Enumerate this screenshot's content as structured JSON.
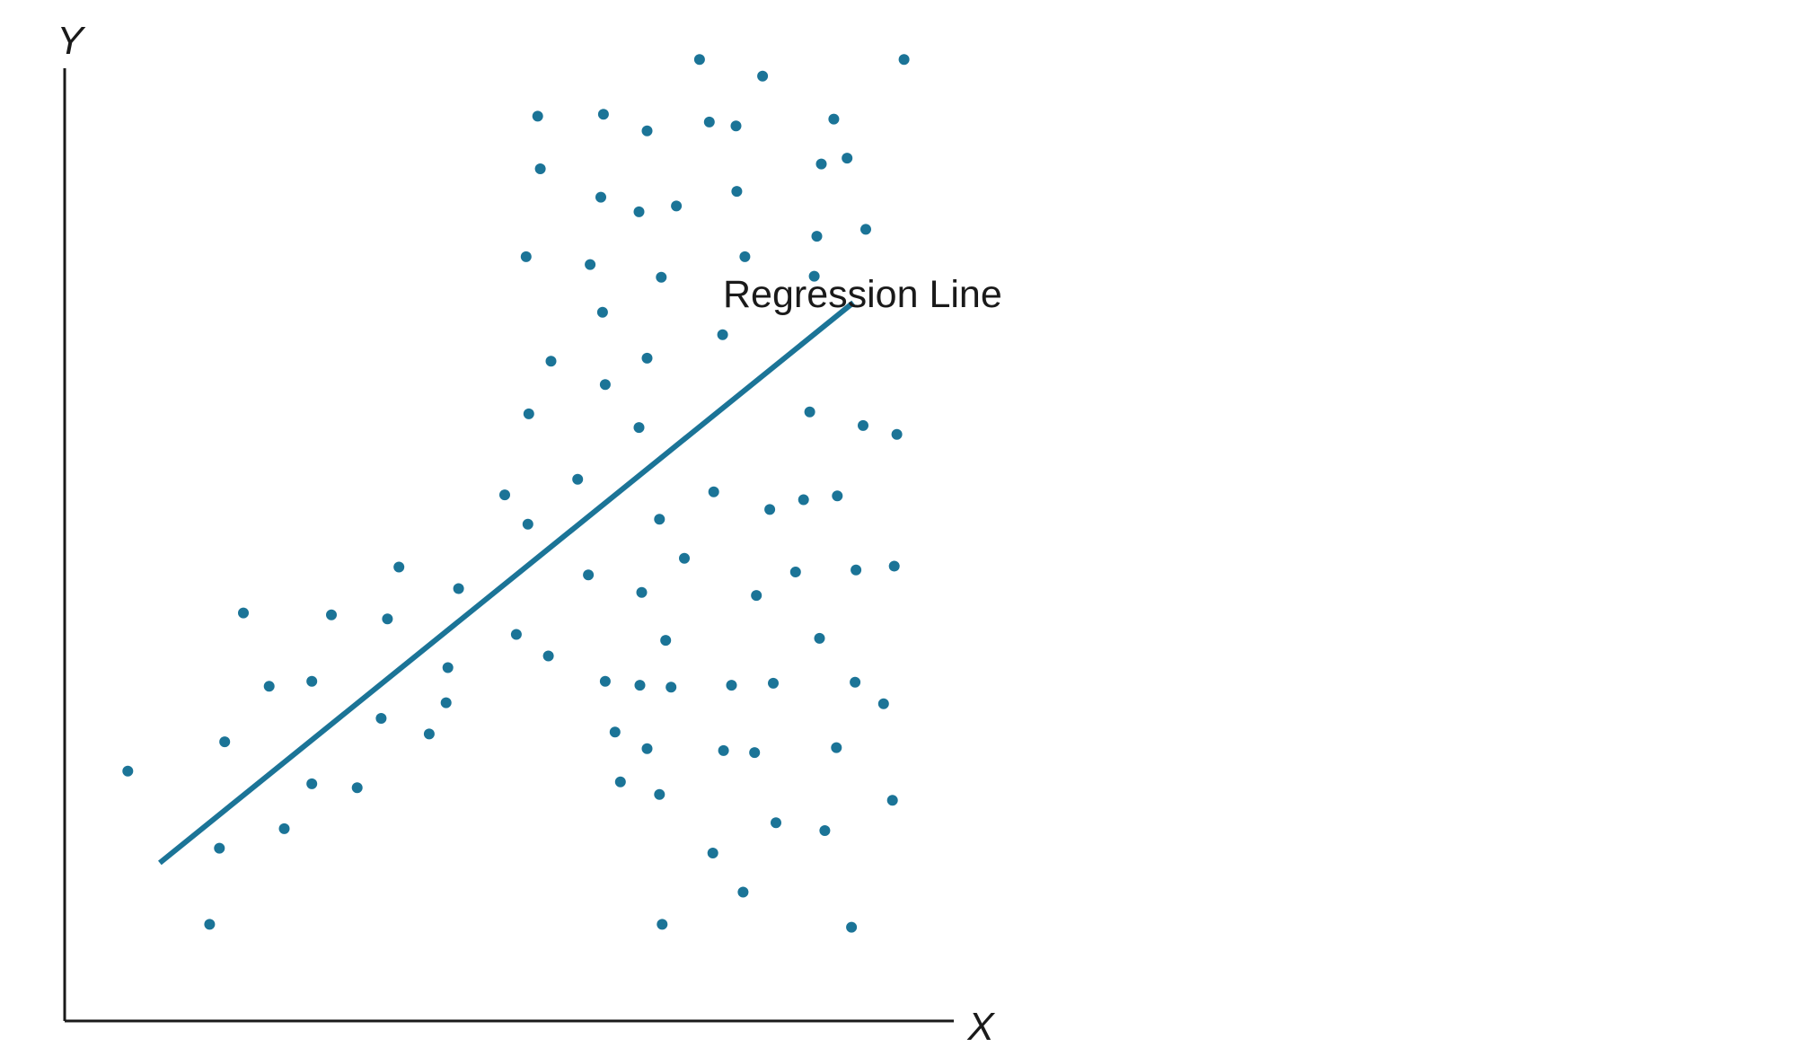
{
  "chart_data": {
    "type": "scatter",
    "xlabel": "X",
    "ylabel": "Y",
    "xlim": [
      0,
      100
    ],
    "ylim": [
      0,
      100
    ],
    "grid": false,
    "legend": "none",
    "point_color": "#1b7497",
    "line_color": "#1b7497",
    "annotation": "Regression Line",
    "regression_line": [
      {
        "x": 10.7,
        "y": 16.2
      },
      {
        "x": 88.7,
        "y": 73.6
      }
    ],
    "points": [
      {
        "x": 71.4,
        "y": 98.5
      },
      {
        "x": 78.5,
        "y": 96.8
      },
      {
        "x": 94.4,
        "y": 98.5
      },
      {
        "x": 53.2,
        "y": 92.7
      },
      {
        "x": 60.6,
        "y": 92.9
      },
      {
        "x": 65.5,
        "y": 91.2
      },
      {
        "x": 72.5,
        "y": 92.1
      },
      {
        "x": 75.5,
        "y": 91.7
      },
      {
        "x": 86.5,
        "y": 92.4
      },
      {
        "x": 53.5,
        "y": 87.3
      },
      {
        "x": 85.1,
        "y": 87.8
      },
      {
        "x": 88.0,
        "y": 88.4
      },
      {
        "x": 60.3,
        "y": 84.4
      },
      {
        "x": 64.6,
        "y": 82.9
      },
      {
        "x": 68.8,
        "y": 83.5
      },
      {
        "x": 75.6,
        "y": 85.0
      },
      {
        "x": 51.9,
        "y": 78.3
      },
      {
        "x": 59.1,
        "y": 77.5
      },
      {
        "x": 67.1,
        "y": 76.2
      },
      {
        "x": 76.5,
        "y": 78.3
      },
      {
        "x": 84.3,
        "y": 76.3
      },
      {
        "x": 84.6,
        "y": 80.4
      },
      {
        "x": 90.1,
        "y": 81.1
      },
      {
        "x": 60.5,
        "y": 72.6
      },
      {
        "x": 74.0,
        "y": 70.3
      },
      {
        "x": 54.7,
        "y": 67.6
      },
      {
        "x": 65.5,
        "y": 67.9
      },
      {
        "x": 60.8,
        "y": 65.2
      },
      {
        "x": 52.2,
        "y": 62.2
      },
      {
        "x": 64.6,
        "y": 60.8
      },
      {
        "x": 83.8,
        "y": 62.4
      },
      {
        "x": 89.8,
        "y": 61.0
      },
      {
        "x": 93.6,
        "y": 60.1
      },
      {
        "x": 49.5,
        "y": 53.9
      },
      {
        "x": 57.7,
        "y": 55.5
      },
      {
        "x": 52.1,
        "y": 50.9
      },
      {
        "x": 66.9,
        "y": 51.4
      },
      {
        "x": 73.0,
        "y": 54.2
      },
      {
        "x": 79.3,
        "y": 52.4
      },
      {
        "x": 83.1,
        "y": 53.4
      },
      {
        "x": 86.9,
        "y": 53.8
      },
      {
        "x": 69.7,
        "y": 47.4
      },
      {
        "x": 37.6,
        "y": 46.5
      },
      {
        "x": 58.9,
        "y": 45.7
      },
      {
        "x": 82.2,
        "y": 46.0
      },
      {
        "x": 89.0,
        "y": 46.2
      },
      {
        "x": 93.3,
        "y": 46.6
      },
      {
        "x": 44.3,
        "y": 44.3
      },
      {
        "x": 64.9,
        "y": 43.9
      },
      {
        "x": 77.8,
        "y": 43.6
      },
      {
        "x": 20.1,
        "y": 41.8
      },
      {
        "x": 30.0,
        "y": 41.6
      },
      {
        "x": 36.3,
        "y": 41.2
      },
      {
        "x": 50.8,
        "y": 39.6
      },
      {
        "x": 67.6,
        "y": 39.0
      },
      {
        "x": 84.9,
        "y": 39.2
      },
      {
        "x": 54.4,
        "y": 37.4
      },
      {
        "x": 43.1,
        "y": 36.2
      },
      {
        "x": 23.0,
        "y": 34.3
      },
      {
        "x": 27.8,
        "y": 34.8
      },
      {
        "x": 60.8,
        "y": 34.8
      },
      {
        "x": 64.7,
        "y": 34.4
      },
      {
        "x": 68.2,
        "y": 34.2
      },
      {
        "x": 75.0,
        "y": 34.4
      },
      {
        "x": 79.7,
        "y": 34.6
      },
      {
        "x": 88.9,
        "y": 34.7
      },
      {
        "x": 92.1,
        "y": 32.5
      },
      {
        "x": 42.9,
        "y": 32.6
      },
      {
        "x": 35.6,
        "y": 31.0
      },
      {
        "x": 41.0,
        "y": 29.4
      },
      {
        "x": 18.0,
        "y": 28.6
      },
      {
        "x": 61.9,
        "y": 29.6
      },
      {
        "x": 65.5,
        "y": 27.9
      },
      {
        "x": 74.1,
        "y": 27.7
      },
      {
        "x": 77.6,
        "y": 27.5
      },
      {
        "x": 86.8,
        "y": 28.0
      },
      {
        "x": 7.1,
        "y": 25.6
      },
      {
        "x": 27.8,
        "y": 24.3
      },
      {
        "x": 32.9,
        "y": 23.9
      },
      {
        "x": 62.5,
        "y": 24.5
      },
      {
        "x": 66.9,
        "y": 23.2
      },
      {
        "x": 93.1,
        "y": 22.6
      },
      {
        "x": 24.7,
        "y": 19.7
      },
      {
        "x": 80.0,
        "y": 20.3
      },
      {
        "x": 85.5,
        "y": 19.5
      },
      {
        "x": 17.4,
        "y": 17.7
      },
      {
        "x": 72.9,
        "y": 17.2
      },
      {
        "x": 76.3,
        "y": 13.2
      },
      {
        "x": 16.3,
        "y": 9.9
      },
      {
        "x": 67.2,
        "y": 9.9
      },
      {
        "x": 88.5,
        "y": 9.6
      }
    ]
  }
}
